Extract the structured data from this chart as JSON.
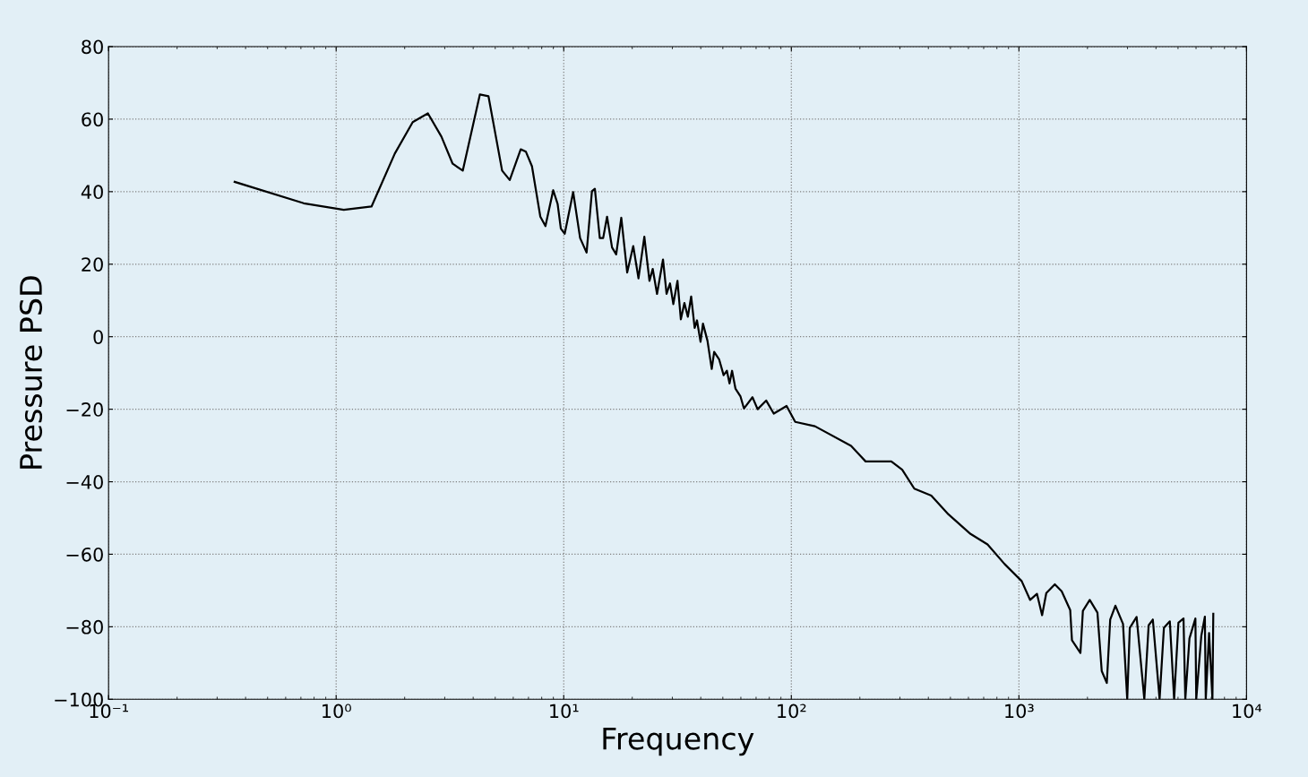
{
  "chart_data": {
    "type": "line",
    "xlabel": "Frequency",
    "ylabel": "Pressure PSD",
    "log": "x",
    "grid": true,
    "marker": "none",
    "line_style": "solid",
    "xlim": [
      0.1,
      10000
    ],
    "ylim": [
      -100,
      80
    ],
    "xticks": [
      {
        "value": 0.1,
        "label": "10⁻¹"
      },
      {
        "value": 1,
        "label": "10⁰"
      },
      {
        "value": 10,
        "label": "10¹"
      },
      {
        "value": 100,
        "label": "10²"
      },
      {
        "value": 1000,
        "label": "10³"
      },
      {
        "value": 10000,
        "label": "10⁴"
      }
    ],
    "yticks": [
      -100,
      -80,
      -60,
      -40,
      -20,
      0,
      20,
      40,
      60,
      80
    ],
    "series": [
      {
        "color": "#000000",
        "x": [
          0.358,
          0.72,
          1.08,
          1.43,
          1.81,
          2.17,
          2.53,
          2.9,
          3.25,
          3.6,
          4.28,
          4.67,
          5.36,
          5.79,
          6.47,
          6.82,
          7.25,
          7.89,
          8.31,
          8.99,
          9.4,
          9.71,
          10.1,
          11.0,
          11.8,
          12.6,
          13.3,
          13.7,
          14.4,
          14.9,
          15.5,
          16.3,
          17.0,
          17.9,
          19.0,
          20.2,
          21.3,
          22.6,
          23.8,
          24.6,
          25.7,
          27.3,
          28.3,
          29.3,
          30.3,
          31.6,
          32.7,
          33.9,
          35.1,
          36.3,
          37.6,
          38.5,
          39.9,
          40.9,
          42.8,
          44.7,
          45.8,
          48.2,
          50.4,
          52.1,
          53.5,
          54.9,
          56.8,
          59.8,
          61.9,
          67.5,
          71.1,
          77.5,
          83.7,
          95.3,
          104,
          127,
          183,
          212,
          275,
          307,
          347,
          412,
          490,
          613,
          728,
          865,
          1028,
          1120,
          1200,
          1264,
          1319,
          1438,
          1541,
          1680,
          1710,
          1863,
          1910,
          2047,
          2213,
          2311,
          2433,
          2518,
          2654,
          2866,
          2991,
          3070,
          3289,
          3556,
          3715,
          3876,
          4150,
          4335,
          4603,
          4807,
          5021,
          5286,
          5383,
          5614,
          5962,
          6012,
          6329,
          6562,
          6620,
          6846,
          7083,
          7145
        ],
        "values": [
          42.7,
          36.8,
          35.0,
          35.9,
          50.5,
          59.2,
          61.6,
          55.2,
          47.7,
          45.8,
          66.8,
          66.3,
          45.8,
          43.2,
          51.7,
          51.0,
          47.0,
          33.1,
          30.5,
          40.4,
          36.6,
          29.8,
          28.4,
          39.9,
          27.2,
          23.2,
          40.1,
          40.8,
          27.2,
          27.2,
          33.1,
          24.6,
          22.7,
          32.8,
          17.7,
          25.0,
          16.1,
          27.6,
          15.4,
          18.7,
          11.8,
          21.3,
          11.8,
          14.7,
          9.0,
          15.4,
          4.8,
          9.3,
          5.5,
          11.1,
          2.4,
          4.5,
          -1.4,
          3.6,
          -1.1,
          -8.9,
          -4.2,
          -6.3,
          -10.6,
          -9.4,
          -12.9,
          -9.4,
          -14.3,
          -16.5,
          -19.8,
          -16.7,
          -20.0,
          -17.6,
          -21.2,
          -19.1,
          -23.5,
          -24.7,
          -30.1,
          -34.4,
          -34.4,
          -36.7,
          -41.9,
          -43.8,
          -49.0,
          -54.4,
          -57.3,
          -62.7,
          -67.4,
          -72.6,
          -70.9,
          -76.8,
          -70.7,
          -68.3,
          -70.2,
          -75.4,
          -83.7,
          -87.2,
          -75.6,
          -72.6,
          -76.1,
          -92.2,
          -95.5,
          -78.0,
          -74.2,
          -79.2,
          -100,
          -80.3,
          -77.3,
          -100,
          -79.6,
          -78.0,
          -100,
          -80.3,
          -78.5,
          -100,
          -78.9,
          -77.7,
          -100,
          -83.2,
          -77.7,
          -100,
          -82.5,
          -77.2,
          -100,
          -81.7,
          -100,
          -76.4
        ]
      }
    ]
  }
}
